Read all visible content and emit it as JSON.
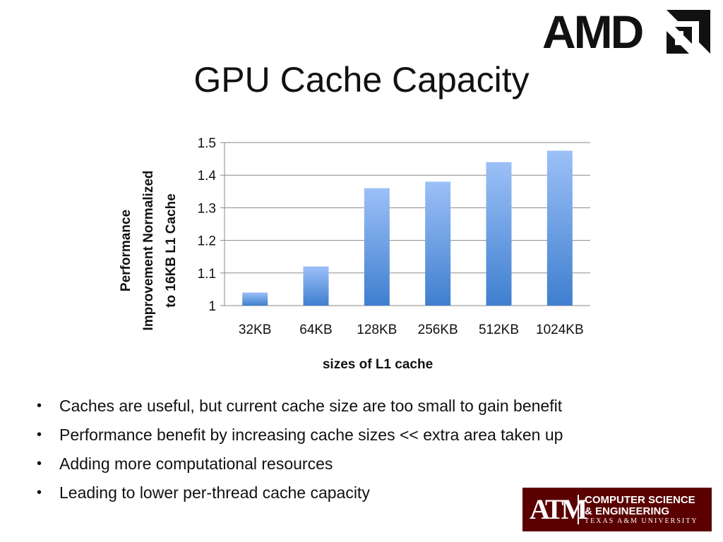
{
  "slide": {
    "title": "GPU Cache Capacity",
    "bullets": [
      "Caches are useful, but current cache size are too small to gain benefit",
      "Performance benefit by increasing cache sizes << extra area taken up",
      "Adding more computational resources",
      "Leading to lower per-thread cache capacity"
    ]
  },
  "logos": {
    "amd": "AMD",
    "tamu": {
      "mark": "ATM",
      "line1": "COMPUTER SCIENCE",
      "line2": "& ENGINEERING",
      "line3": "TEXAS A&M UNIVERSITY"
    }
  },
  "colors": {
    "bar_top": "#9cc0f7",
    "bar_bottom": "#3f7fcf",
    "grid": "#8a8a8a",
    "tamu_maroon": "#5b0000"
  },
  "chart_data": {
    "type": "bar",
    "title": "",
    "categories": [
      "32KB",
      "64KB",
      "128KB",
      "256KB",
      "512KB",
      "1024KB"
    ],
    "values": [
      1.04,
      1.12,
      1.36,
      1.38,
      1.44,
      1.475
    ],
    "xlabel": "sizes of L1 cache",
    "ylabel_lines": [
      "Performance",
      "Improvement Normalized",
      "to 16KB L1 Cache"
    ],
    "ylim": [
      1,
      1.5
    ],
    "yticks": [
      "1",
      "1.1",
      "1.2",
      "1.3",
      "1.4",
      "1.5"
    ],
    "grid": true,
    "legend": "none"
  }
}
